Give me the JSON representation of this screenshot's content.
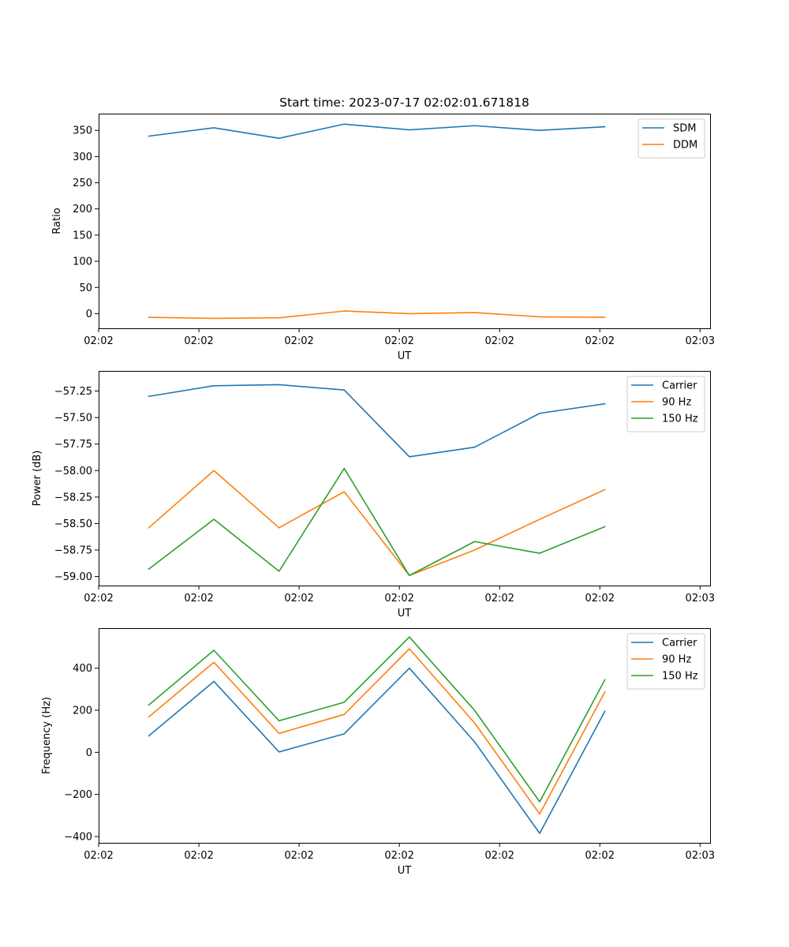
{
  "chart_data": [
    {
      "type": "line",
      "title": "Start time: 2023-07-17 02:02:01.671818",
      "xlabel": "UT",
      "ylabel": "Ratio",
      "x_tick_labels": [
        "02:02",
        "02:02",
        "02:02",
        "02:02",
        "02:02",
        "02:02",
        "02:03"
      ],
      "xlim": [
        0,
        6.1
      ],
      "x_tick_positions": [
        0,
        1,
        2,
        3,
        4,
        5,
        6
      ],
      "x": [
        0.5,
        1.15,
        1.8,
        2.45,
        3.1,
        3.75,
        4.4,
        5.05
      ],
      "ylim": [
        -28,
        382
      ],
      "yticks": [
        0,
        50,
        100,
        150,
        200,
        250,
        300,
        350
      ],
      "y_tick_labels": [
        "0",
        "50",
        "100",
        "150",
        "200",
        "250",
        "300",
        "350"
      ],
      "legend_position": "top-right",
      "series": [
        {
          "name": "SDM",
          "color": "#1f77b4",
          "values": [
            339,
            355,
            335,
            362,
            351,
            359,
            350,
            357
          ]
        },
        {
          "name": "DDM",
          "color": "#ff7f0e",
          "values": [
            -7,
            -9,
            -8,
            5,
            0,
            2,
            -6,
            -7
          ]
        }
      ]
    },
    {
      "type": "line",
      "title": "",
      "xlabel": "UT",
      "ylabel": "Power (dB)",
      "x_tick_labels": [
        "02:02",
        "02:02",
        "02:02",
        "02:02",
        "02:02",
        "02:02",
        "02:03"
      ],
      "xlim": [
        0,
        6.1
      ],
      "x_tick_positions": [
        0,
        1,
        2,
        3,
        4,
        5,
        6
      ],
      "x": [
        0.5,
        1.15,
        1.8,
        2.45,
        3.1,
        3.75,
        4.4,
        5.05
      ],
      "ylim": [
        -59.085,
        -57.06
      ],
      "yticks": [
        -59.0,
        -58.75,
        -58.5,
        -58.25,
        -58.0,
        -57.75,
        -57.5,
        -57.25
      ],
      "y_tick_labels": [
        "−59.00",
        "−58.75",
        "−58.50",
        "−58.25",
        "−58.00",
        "−57.75",
        "−57.50",
        "−57.25"
      ],
      "legend_position": "top-right",
      "series": [
        {
          "name": "Carrier",
          "color": "#1f77b4",
          "values": [
            -57.3,
            -57.2,
            -57.19,
            -57.24,
            -57.87,
            -57.78,
            -57.46,
            -57.37
          ]
        },
        {
          "name": "90 Hz",
          "color": "#ff7f0e",
          "values": [
            -58.54,
            -58.0,
            -58.54,
            -58.2,
            -58.99,
            -58.75,
            -58.46,
            -58.18
          ]
        },
        {
          "name": "150 Hz",
          "color": "#2ca02c",
          "values": [
            -58.93,
            -58.46,
            -58.95,
            -57.98,
            -58.99,
            -58.67,
            -58.78,
            -58.53
          ]
        }
      ]
    },
    {
      "type": "line",
      "title": "",
      "xlabel": "UT",
      "ylabel": "Frequency (Hz)",
      "x_tick_labels": [
        "02:02",
        "02:02",
        "02:02",
        "02:02",
        "02:02",
        "02:02",
        "02:03"
      ],
      "xlim": [
        0,
        6.1
      ],
      "x_tick_positions": [
        0,
        1,
        2,
        3,
        4,
        5,
        6
      ],
      "x": [
        0.5,
        1.15,
        1.8,
        2.45,
        3.1,
        3.75,
        4.4,
        5.05
      ],
      "ylim": [
        -430,
        590
      ],
      "yticks": [
        -400,
        -200,
        0,
        200,
        400
      ],
      "y_tick_labels": [
        "−400",
        "−200",
        "0",
        "200",
        "400"
      ],
      "legend_position": "top-right",
      "series": [
        {
          "name": "Carrier",
          "color": "#1f77b4",
          "values": [
            78,
            337,
            2,
            88,
            400,
            50,
            -385,
            195
          ]
        },
        {
          "name": "90 Hz",
          "color": "#ff7f0e",
          "values": [
            168,
            428,
            90,
            180,
            492,
            140,
            -293,
            287
          ]
        },
        {
          "name": "150 Hz",
          "color": "#2ca02c",
          "values": [
            225,
            485,
            150,
            238,
            548,
            200,
            -235,
            345
          ]
        }
      ]
    }
  ]
}
